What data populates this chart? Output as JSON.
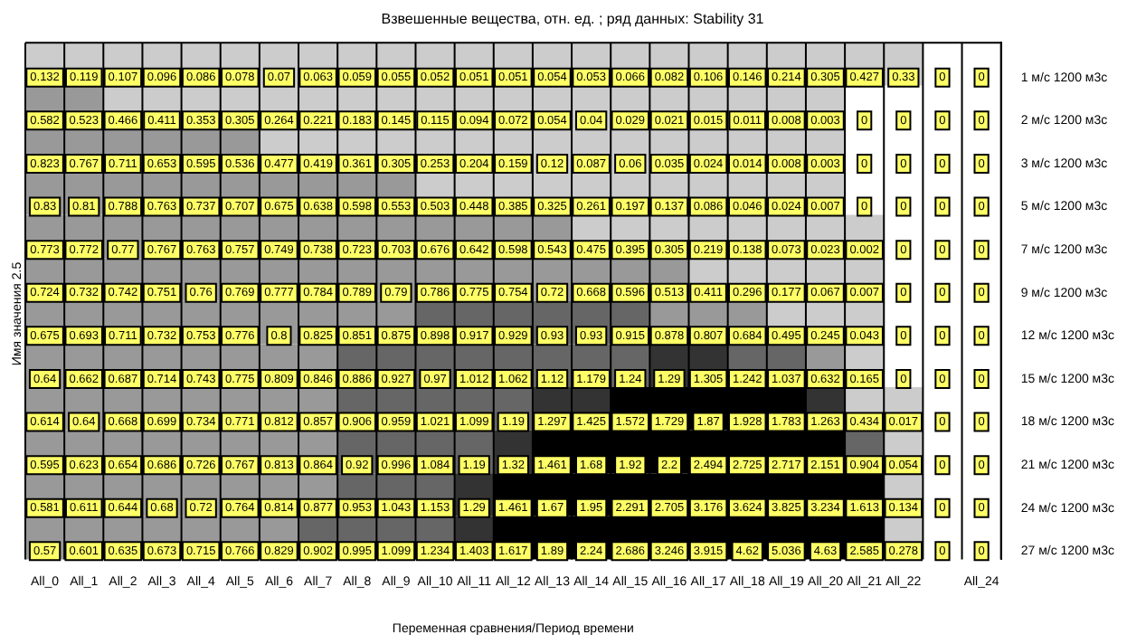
{
  "chart_data": {
    "type": "heatmap",
    "title": "Взвешенные вещества, отн. ед. ; ряд данных: Stability 31",
    "xlabel": "Переменная сравнения/Период времени",
    "ylabel": "Имя значения 2.5",
    "data_labels": true,
    "categories": [
      "All_0",
      "All_1",
      "All_2",
      "All_3",
      "All_4",
      "All_5",
      "All_6",
      "All_7",
      "All_8",
      "All_9",
      "All_10",
      "All_11",
      "All_12",
      "All_13",
      "All_14",
      "All_15",
      "All_16",
      "All_17",
      "All_18",
      "All_19",
      "All_20",
      "All_21",
      "All_22",
      null,
      "All_24"
    ],
    "y_categories": [
      "1 м/с 1200 м3с",
      "2 м/с 1200 м3с",
      "3 м/с 1200 м3с",
      "5 м/с 1200 м3с",
      "7 м/с 1200 м3с",
      "9 м/с 1200 м3с",
      "12 м/с 1200 м3с",
      "15 м/с 1200 м3с",
      "18 м/с 1200 м3с",
      "21 м/с 1200 м3с",
      "24 м/с 1200 м3с",
      "27 м/с 1200 м3с"
    ],
    "cells": [
      [
        0.132,
        0.119,
        0.107,
        0.096,
        0.086,
        0.078,
        0.07,
        0.063,
        0.059,
        0.055,
        0.052,
        0.051,
        0.051,
        0.054,
        0.053,
        0.066,
        0.082,
        0.106,
        0.146,
        0.214,
        0.305,
        0.427,
        0.33,
        0,
        0
      ],
      [
        0.582,
        0.523,
        0.466,
        0.411,
        0.353,
        0.305,
        0.264,
        0.221,
        0.183,
        0.145,
        0.115,
        0.094,
        0.072,
        0.054,
        0.04,
        0.029,
        0.021,
        0.015,
        0.011,
        0.008,
        0.003,
        0,
        0,
        0,
        0
      ],
      [
        0.823,
        0.767,
        0.711,
        0.653,
        0.595,
        0.536,
        0.477,
        0.419,
        0.361,
        0.305,
        0.253,
        0.204,
        0.159,
        0.12,
        0.087,
        0.06,
        0.035,
        0.024,
        0.014,
        0.008,
        0.003,
        0,
        0,
        0,
        0
      ],
      [
        0.83,
        0.81,
        0.788,
        0.763,
        0.737,
        0.707,
        0.675,
        0.638,
        0.598,
        0.553,
        0.503,
        0.448,
        0.385,
        0.325,
        0.261,
        0.197,
        0.137,
        0.086,
        0.046,
        0.024,
        0.007,
        0,
        0,
        0,
        0
      ],
      [
        0.773,
        0.772,
        0.77,
        0.767,
        0.763,
        0.757,
        0.749,
        0.738,
        0.723,
        0.703,
        0.676,
        0.642,
        0.598,
        0.543,
        0.475,
        0.395,
        0.305,
        0.219,
        0.138,
        0.073,
        0.023,
        0.002,
        0,
        0,
        0
      ],
      [
        0.724,
        0.732,
        0.742,
        0.751,
        0.76,
        0.769,
        0.777,
        0.784,
        0.789,
        0.79,
        0.786,
        0.775,
        0.754,
        0.72,
        0.668,
        0.596,
        0.513,
        0.411,
        0.296,
        0.177,
        0.067,
        0.007,
        0,
        0,
        0
      ],
      [
        0.675,
        0.693,
        0.711,
        0.732,
        0.753,
        0.776,
        0.8,
        0.825,
        0.851,
        0.875,
        0.898,
        0.917,
        0.929,
        0.93,
        0.93,
        0.915,
        0.878,
        0.807,
        0.684,
        0.495,
        0.245,
        0.043,
        0,
        0,
        0
      ],
      [
        0.64,
        0.662,
        0.687,
        0.714,
        0.743,
        0.775,
        0.809,
        0.846,
        0.886,
        0.927,
        0.97,
        1.012,
        1.062,
        1.12,
        1.179,
        1.24,
        1.29,
        1.305,
        1.242,
        1.037,
        0.632,
        0.165,
        0,
        0,
        0
      ],
      [
        0.614,
        0.64,
        0.668,
        0.699,
        0.734,
        0.771,
        0.812,
        0.857,
        0.906,
        0.959,
        1.021,
        1.099,
        1.19,
        1.297,
        1.425,
        1.572,
        1.729,
        1.87,
        1.928,
        1.783,
        1.263,
        0.434,
        0.017,
        0,
        0
      ],
      [
        0.595,
        0.623,
        0.654,
        0.686,
        0.726,
        0.767,
        0.813,
        0.864,
        0.92,
        0.996,
        1.084,
        1.19,
        1.32,
        1.461,
        1.68,
        1.92,
        2.2,
        2.494,
        2.725,
        2.717,
        2.151,
        0.904,
        0.054,
        0,
        0
      ],
      [
        0.581,
        0.611,
        0.644,
        0.68,
        0.72,
        0.764,
        0.814,
        0.877,
        0.953,
        1.043,
        1.153,
        1.29,
        1.461,
        1.67,
        1.95,
        2.291,
        2.705,
        3.176,
        3.624,
        3.825,
        3.234,
        1.613,
        0.134,
        0,
        0
      ],
      [
        0.57,
        0.601,
        0.635,
        0.673,
        0.715,
        0.766,
        0.829,
        0.902,
        0.995,
        1.099,
        1.234,
        1.403,
        1.617,
        1.89,
        2.24,
        2.686,
        3.246,
        3.915,
        4.62,
        5.036,
        4.63,
        2.585,
        0.278,
        0,
        0
      ]
    ]
  }
}
